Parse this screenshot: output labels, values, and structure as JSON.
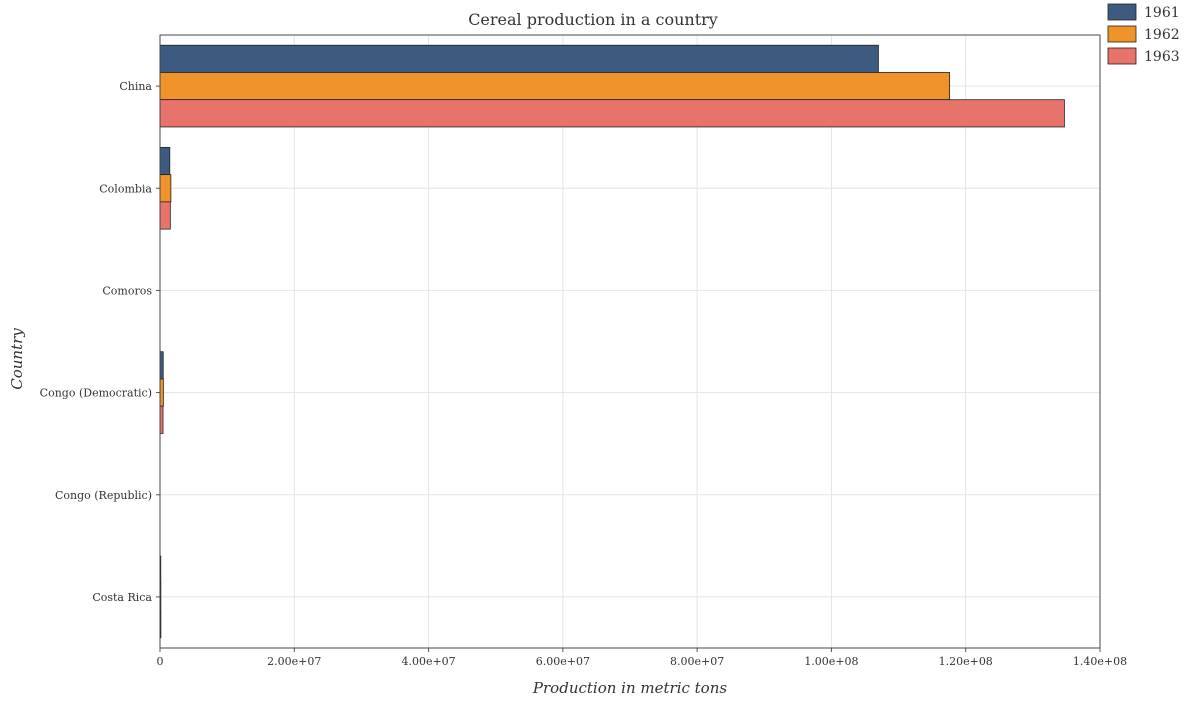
{
  "chart_data": {
    "type": "bar",
    "orientation": "horizontal",
    "title": "Cereal production in a country",
    "xlabel": "Production in metric tons",
    "ylabel": "Country",
    "categories": [
      "China",
      "Colombia",
      "Comoros",
      "Congo (Democratic)",
      "Congo (Republic)",
      "Costa Rica"
    ],
    "series": [
      {
        "name": "1961",
        "color": "#3d5a80",
        "values": [
          107000000,
          1460000,
          13000,
          480000,
          3000,
          120000
        ]
      },
      {
        "name": "1962",
        "color": "#f0932b",
        "values": [
          117600000,
          1620000,
          13500,
          500000,
          3200,
          125000
        ]
      },
      {
        "name": "1963",
        "color": "#e8736b",
        "values": [
          134700000,
          1540000,
          14000,
          450000,
          3500,
          135000
        ]
      }
    ],
    "xlim": [
      0,
      140000000
    ],
    "xticks": [
      0,
      20000000,
      40000000,
      60000000,
      80000000,
      100000000,
      120000000,
      140000000
    ],
    "xtick_labels": [
      "0",
      "2.00e+07",
      "4.00e+07",
      "6.00e+07",
      "8.00e+07",
      "1.00e+08",
      "1.20e+08",
      "1.40e+08"
    ],
    "grid": true,
    "legend_position": "top-right"
  }
}
